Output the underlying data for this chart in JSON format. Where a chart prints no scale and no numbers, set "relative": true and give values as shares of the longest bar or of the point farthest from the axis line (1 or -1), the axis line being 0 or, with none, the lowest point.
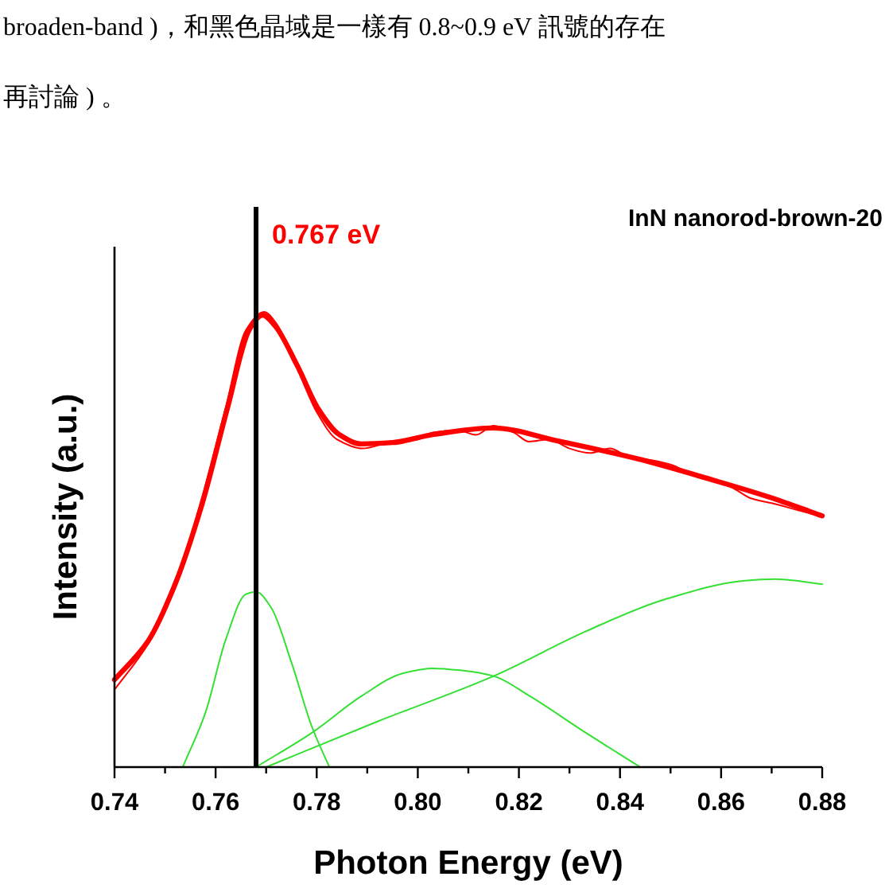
{
  "chart_data": {
    "type": "line",
    "relative": true,
    "title": "InN nanorod-brown-20",
    "xlabel": "Photon Energy (eV)",
    "ylabel": "Intensity (a.u.)",
    "annotations": [
      "broaden-band )，和黑色晶域是一樣有 0.8~0.9 eV 訊號的存在",
      "再討論 ) 。"
    ],
    "xlim": [
      0.74,
      0.88
    ],
    "xticks": [
      {
        "value": 0.74,
        "label": "0.74"
      },
      {
        "value": 0.75,
        "label": null
      },
      {
        "value": 0.76,
        "label": "0.76"
      },
      {
        "value": 0.77,
        "label": null
      },
      {
        "value": 0.78,
        "label": "0.78"
      },
      {
        "value": 0.79,
        "label": null
      },
      {
        "value": 0.8,
        "label": "0.80"
      },
      {
        "value": 0.81,
        "label": null
      },
      {
        "value": 0.82,
        "label": "0.82"
      },
      {
        "value": 0.83,
        "label": null
      },
      {
        "value": 0.84,
        "label": "0.84"
      },
      {
        "value": 0.85,
        "label": null
      },
      {
        "value": 0.86,
        "label": "0.86"
      },
      {
        "value": 0.87,
        "label": null
      },
      {
        "value": 0.88,
        "label": "0.88"
      }
    ],
    "tick_labels": "x",
    "grid": false,
    "marker": "none",
    "line_style": "solid",
    "ref_lines": [
      {
        "axis": "x",
        "value": 0.768,
        "label": "0.767 eV",
        "color": "#000000"
      }
    ],
    "series": [
      {
        "color": "#ff0000",
        "x": [
          0.74,
          0.7466,
          0.752,
          0.757,
          0.762,
          0.766,
          0.7696,
          0.772,
          0.776,
          0.78,
          0.784,
          0.789,
          0.795,
          0.8,
          0.803,
          0.808,
          0.8115,
          0.815,
          0.819,
          0.822,
          0.826,
          0.83,
          0.834,
          0.838,
          0.842,
          0.846,
          0.85,
          0.854,
          0.858,
          0.862,
          0.866,
          0.87,
          0.875,
          0.88
        ],
        "values": [
          0.17,
          0.27,
          0.4,
          0.58,
          0.79,
          0.96,
          1.0,
          0.975,
          0.88,
          0.78,
          0.72,
          0.7,
          0.715,
          0.72,
          0.735,
          0.74,
          0.73,
          0.75,
          0.735,
          0.715,
          0.72,
          0.7,
          0.69,
          0.7,
          0.68,
          0.675,
          0.665,
          0.645,
          0.63,
          0.615,
          0.59,
          0.58,
          0.565,
          0.55
        ]
      },
      {
        "color": "#ff0000",
        "x": [
          0.74,
          0.7466,
          0.752,
          0.7573,
          0.7623,
          0.7667,
          0.7693,
          0.7718,
          0.7762,
          0.7803,
          0.7844,
          0.7888,
          0.795,
          0.8032,
          0.8149,
          0.8275,
          0.8432,
          0.8589,
          0.8693,
          0.88
        ],
        "values": [
          0.192,
          0.276,
          0.402,
          0.577,
          0.787,
          0.962,
          0.993,
          0.969,
          0.881,
          0.787,
          0.731,
          0.71,
          0.713,
          0.731,
          0.745,
          0.717,
          0.678,
          0.629,
          0.594,
          0.552
        ]
      },
      {
        "color": "#33e033",
        "x": [
          0.7535,
          0.758,
          0.762,
          0.766,
          0.768,
          0.771,
          0.775,
          0.779,
          0.7825
        ],
        "values": [
          0.0,
          0.12,
          0.28,
          0.38,
          0.385,
          0.35,
          0.23,
          0.09,
          0.0
        ]
      },
      {
        "color": "#33e033",
        "x": [
          0.768,
          0.779,
          0.789,
          0.797,
          0.803,
          0.809,
          0.815,
          0.822,
          0.833,
          0.844
        ],
        "values": [
          0.0,
          0.075,
          0.157,
          0.206,
          0.217,
          0.212,
          0.2,
          0.157,
          0.077,
          0.0
        ]
      },
      {
        "color": "#33e033",
        "x": [
          0.77,
          0.792,
          0.815,
          0.833,
          0.8485,
          0.8643,
          0.8706,
          0.88
        ],
        "values": [
          0.0,
          0.1,
          0.2,
          0.297,
          0.367,
          0.409,
          0.413,
          0.402
        ]
      }
    ]
  }
}
